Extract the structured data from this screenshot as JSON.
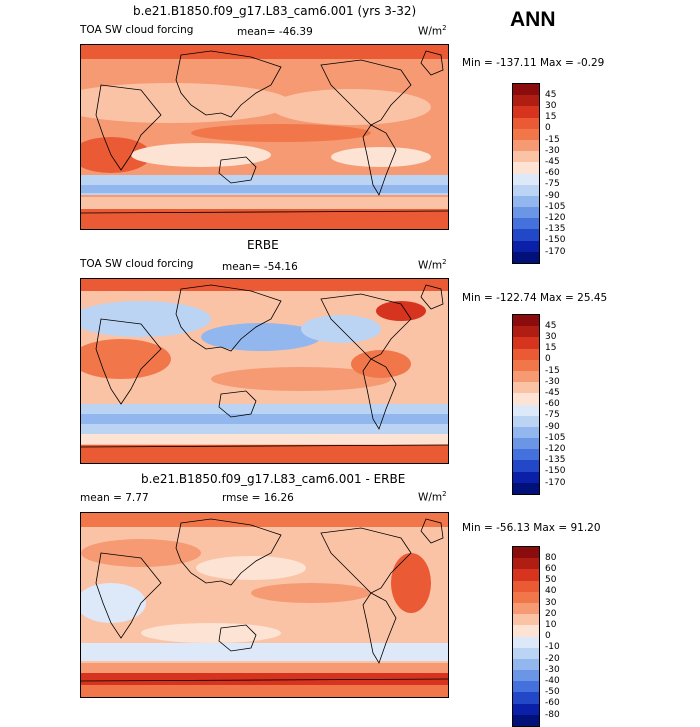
{
  "big_label": "ANN",
  "panels": [
    {
      "id": "model",
      "title": "b.e21.B1850.f09_g17.L83_cam6.001 (yrs 3-32)",
      "left_label": "TOA SW cloud forcing",
      "stat1": "mean= -46.39",
      "stat2": "",
      "units": "W/m",
      "units_exp": "2",
      "minmax": "Min = -137.11  Max =  -0.29",
      "levels": [
        "45",
        "30",
        "15",
        "0",
        "-15",
        "-30",
        "-45",
        "-60",
        "-75",
        "-90",
        "-105",
        "-120",
        "-135",
        "-150",
        "-170"
      ],
      "colors": [
        "#8a0c0c",
        "#b01e13",
        "#d7341f",
        "#ea5a34",
        "#f1774b",
        "#f59a72",
        "#fbc3a6",
        "#fde3d4",
        "#dde8f8",
        "#bcd4f4",
        "#92b6ee",
        "#6b96e6",
        "#4471dc",
        "#2248c8",
        "#0a20a8",
        "#02107a"
      ]
    },
    {
      "id": "obs",
      "title": "ERBE",
      "left_label": "TOA SW cloud forcing",
      "stat1": "mean= -54.16",
      "stat2": "",
      "units": "W/m",
      "units_exp": "2",
      "minmax": "Min = -122.74  Max =  25.45",
      "levels": [
        "45",
        "30",
        "15",
        "0",
        "-15",
        "-30",
        "-45",
        "-60",
        "-75",
        "-90",
        "-105",
        "-120",
        "-135",
        "-150",
        "-170"
      ],
      "colors": [
        "#8a0c0c",
        "#b01e13",
        "#d7341f",
        "#ea5a34",
        "#f1774b",
        "#f59a72",
        "#fbc3a6",
        "#fde3d4",
        "#dde8f8",
        "#bcd4f4",
        "#92b6ee",
        "#6b96e6",
        "#4471dc",
        "#2248c8",
        "#0a20a8",
        "#02107a"
      ]
    },
    {
      "id": "diff",
      "title": "b.e21.B1850.f09_g17.L83_cam6.001 - ERBE",
      "left_label": "",
      "stat1": "mean =   7.77",
      "stat2": "rmse =  16.26",
      "units": "W/m",
      "units_exp": "2",
      "minmax": "Min = -56.13  Max =  91.20",
      "levels": [
        "80",
        "60",
        "50",
        "40",
        "30",
        "20",
        "10",
        "0",
        "-10",
        "-20",
        "-30",
        "-40",
        "-50",
        "-60",
        "-80"
      ],
      "colors": [
        "#8a0c0c",
        "#b01e13",
        "#d7341f",
        "#ea5a34",
        "#f1774b",
        "#f59a72",
        "#fbc3a6",
        "#fde3d4",
        "#dde8f8",
        "#bcd4f4",
        "#92b6ee",
        "#6b96e6",
        "#4471dc",
        "#2248c8",
        "#0a20a8",
        "#02107a"
      ]
    }
  ],
  "chart_data": [
    {
      "type": "heatmap",
      "title": "b.e21.B1850.f09_g17.L83_cam6.001 (yrs 3-32)",
      "variable": "TOA SW cloud forcing",
      "units": "W/m2",
      "mean": -46.39,
      "min": -137.11,
      "max": -0.29,
      "contour_levels": [
        45,
        30,
        15,
        0,
        -15,
        -30,
        -45,
        -60,
        -75,
        -90,
        -105,
        -120,
        -135,
        -150,
        -170
      ]
    },
    {
      "type": "heatmap",
      "title": "ERBE",
      "variable": "TOA SW cloud forcing",
      "units": "W/m2",
      "mean": -54.16,
      "min": -122.74,
      "max": 25.45,
      "contour_levels": [
        45,
        30,
        15,
        0,
        -15,
        -30,
        -45,
        -60,
        -75,
        -90,
        -105,
        -120,
        -135,
        -150,
        -170
      ]
    },
    {
      "type": "heatmap",
      "title": "b.e21.B1850.f09_g17.L83_cam6.001 - ERBE",
      "units": "W/m2",
      "mean": 7.77,
      "rmse": 16.26,
      "min": -56.13,
      "max": 91.2,
      "contour_levels": [
        80,
        60,
        50,
        40,
        30,
        20,
        10,
        0,
        -10,
        -20,
        -30,
        -40,
        -50,
        -60,
        -80
      ]
    }
  ]
}
